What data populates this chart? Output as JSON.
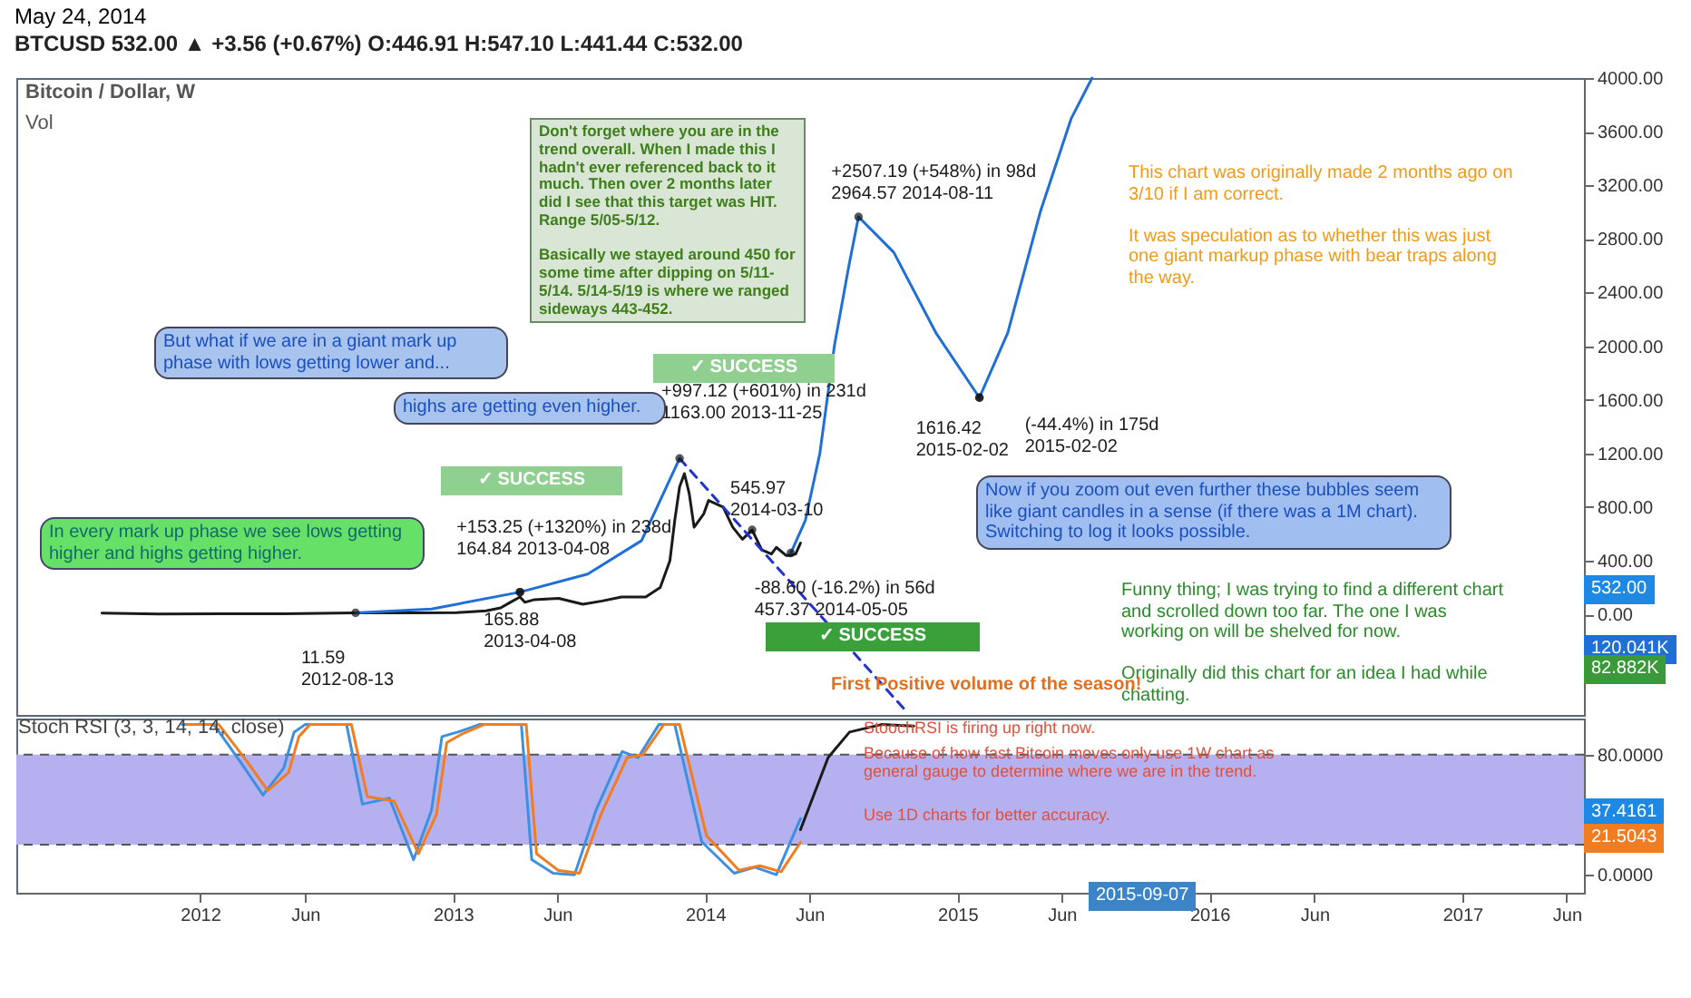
{
  "chart_data": [
    {
      "type": "line",
      "title": "Bitcoin / Dollar, W",
      "subtitle": "May 24, 2014",
      "xlim": [
        "2011-04-10",
        "2017-06-26"
      ],
      "ylim": [
        -750,
        4000
      ],
      "yticks": [
        {
          "value": 0,
          "label": "0.00"
        },
        {
          "value": 400,
          "label": "400.00"
        },
        {
          "value": 800,
          "label": "800.00"
        },
        {
          "value": 1200,
          "label": "1200.00"
        },
        {
          "value": 1600,
          "label": "1600.00"
        },
        {
          "value": 2000,
          "label": "2000.00"
        },
        {
          "value": 2400,
          "label": "2400.00"
        },
        {
          "value": 2800,
          "label": "2800.00"
        },
        {
          "value": 3200,
          "label": "3200.00"
        },
        {
          "value": 3600,
          "label": "3600.00"
        },
        {
          "value": 4000,
          "label": "4000.00"
        }
      ],
      "tick_labels": "y",
      "grid": false,
      "series": [
        {
          "color": "#1a1a1a",
          "x": [
            "2011-08-12",
            "2011-11-01",
            "2012-02-01",
            "2012-05-01",
            "2012-08-13",
            "2012-11-01",
            "2013-01-07",
            "2013-02-18",
            "2013-03-11",
            "2013-03-25",
            "2013-04-08",
            "2013-04-15",
            "2013-04-29",
            "2013-06-03",
            "2013-07-08",
            "2013-08-05",
            "2013-09-02",
            "2013-10-07",
            "2013-10-28",
            "2013-11-11",
            "2013-11-18",
            "2013-11-25",
            "2013-12-02",
            "2013-12-09",
            "2013-12-16",
            "2013-12-30",
            "2014-01-06",
            "2014-01-27",
            "2014-02-10",
            "2014-02-24",
            "2014-03-10",
            "2014-03-24",
            "2014-04-07",
            "2014-04-14",
            "2014-04-28",
            "2014-05-05",
            "2014-05-12",
            "2014-05-19"
          ],
          "values": [
            10,
            3,
            5,
            5,
            11.59,
            11,
            13,
            27,
            48,
            90,
            130,
            90,
            110,
            120,
            75,
            100,
            130,
            130,
            200,
            400,
            700,
            950,
            1050,
            900,
            650,
            750,
            850,
            800,
            650,
            560,
            630,
            480,
            450,
            500,
            440,
            440,
            450,
            532
          ]
        },
        {
          "color": "#1f6fd6",
          "x": [
            "2012-08-13",
            "2012-12-01",
            "2013-04-08",
            "2013-07-15",
            "2013-10-01",
            "2013-11-25"
          ],
          "values": [
            11.59,
            40,
            165.88,
            300,
            550,
            1163
          ]
        },
        {
          "color": "#1f6fd6",
          "x": [
            "2014-05-05",
            "2014-05-26",
            "2014-06-16",
            "2014-07-07",
            "2014-07-28",
            "2014-08-11"
          ],
          "values": [
            457.37,
            700,
            1200,
            2000,
            2600,
            2964.57
          ]
        },
        {
          "color": "#1f6fd6",
          "x": [
            "2014-08-11",
            "2014-10-01",
            "2014-12-01",
            "2015-02-02"
          ],
          "values": [
            2964.57,
            2700,
            2100,
            1616.42
          ]
        },
        {
          "color": "#1f6fd6",
          "x": [
            "2015-02-02",
            "2015-03-15",
            "2015-05-01",
            "2015-06-15",
            "2015-07-15"
          ],
          "values": [
            1616.42,
            2100,
            3000,
            3700,
            4000
          ]
        },
        {
          "color": "#2233cc",
          "line_style": "dashed",
          "x": [
            "2013-11-25",
            "2014-10-15"
          ],
          "values": [
            1163,
            -700
          ]
        }
      ],
      "annotations": [
        "BTCUSD 532.00 ▲ +3.56 (+0.67%) O:446.91 H:547.10 L:441.44 C:532.00",
        "Vol",
        "Don't forget where you are in the trend overall. When I made this I hadn't ever referenced back to it much. Then over 2 months later did I see that this target was HIT. Range 5/05-5/12.\n\nBasically we stayed around 450 for some time after dipping on 5/11-5/14. 5/14-5/19 is where we ranged sideways 443-452.",
        "But what if we are in a giant mark up phase with lows getting lower and...",
        "highs are getting even higher.",
        "In every mark up phase we see lows getting higher and highs getting higher.",
        "Now if you zoom out even further these bubbles seem like giant candles in a sense (if there was a 1M chart). Switching to log it looks possible.",
        "This chart was originally made 2 months ago on 3/10 if I am correct.\n\nIt was speculation as to whether this was just one giant markup phase with bear traps along the way.",
        "Funny thing; I was trying to find a different chart and scrolled down too far. The one I was working on will be shelved for now.\n\nOriginally did this chart for an idea I had while chatting.",
        "First Positive volume of the season!",
        "✓ SUCCESS",
        "✓ SUCCESS",
        "✓ SUCCESS",
        "532.00",
        "120.041K",
        "82.882K",
        {
          "text": "+2507.19 (+548%) in 98d\n2964.57  2014-08-11",
          "x": "2014-08-11",
          "y": 2964.57
        },
        {
          "text": "+997.12 (+601%) in 231d\n1163.00  2013-11-25",
          "x": "2013-11-25",
          "y": 1163
        },
        {
          "text": "+153.25 (+1320%) in 238d\n164.84  2013-04-08",
          "x": "2013-04-08",
          "y": 165.88
        },
        {
          "text": "-88.60 (-16.2%) in 56d\n457.37  2014-05-05",
          "x": "2014-05-05",
          "y": 457.37
        },
        {
          "text": "(-44.4%) in 175d\n2015-02-02",
          "x": "2015-02-02",
          "y": 1616.42
        },
        {
          "text": "11.59\n2012-08-13",
          "x": "2012-08-13",
          "y": 11.59
        },
        {
          "text": "165.88\n2013-04-08",
          "x": "2013-04-08",
          "y": 165.88
        },
        {
          "text": "545.97\n2014-03-10",
          "x": "2014-03-10",
          "y": 630
        },
        {
          "text": "1616.42\n2015-02-02",
          "x": "2015-02-02",
          "y": 1616.42
        }
      ]
    },
    {
      "type": "line",
      "title": "Stoch RSI (3, 3, 14, 14, close)",
      "xlim": [
        "2011-04-10",
        "2017-06-26"
      ],
      "ylim": [
        -12,
        104
      ],
      "yticks": [
        {
          "value": 0,
          "label": "0.0000"
        },
        {
          "value": 80,
          "label": "80.0000"
        }
      ],
      "xticks": [
        {
          "value": "2012-01-01",
          "label": "2012"
        },
        {
          "value": "2012-06-01",
          "label": "Jun"
        },
        {
          "value": "2013-01-01",
          "label": "2013"
        },
        {
          "value": "2013-06-01",
          "label": "Jun"
        },
        {
          "value": "2014-01-01",
          "label": "2014"
        },
        {
          "value": "2014-06-01",
          "label": "Jun"
        },
        {
          "value": "2015-01-01",
          "label": "2015"
        },
        {
          "value": "2015-06-01",
          "label": "Jun"
        },
        {
          "value": "2016-01-01",
          "label": "2016"
        },
        {
          "value": "2016-06-01",
          "label": "Jun"
        },
        {
          "value": "2017-01-01",
          "label": "2017"
        },
        {
          "value": "2017-06-01",
          "label": "Jun"
        }
      ],
      "grid": false,
      "bands": [
        {
          "axis": "y",
          "from": 20,
          "to": 80,
          "color": "#b5b1f0"
        }
      ],
      "ref_lines": [
        {
          "axis": "y",
          "value": 80,
          "color": "#555555",
          "line_style": "dashed"
        },
        {
          "axis": "y",
          "value": 20,
          "color": "#555555",
          "line_style": "dashed"
        }
      ],
      "series": [
        {
          "color": "#3d8fe0",
          "x": [
            "2011-12-06",
            "2012-01-21",
            "2012-03-01",
            "2012-04-01",
            "2012-05-01",
            "2012-05-16",
            "2012-06-01",
            "2012-07-31",
            "2012-08-23",
            "2012-10-01",
            "2012-11-05",
            "2012-12-01",
            "2012-12-16",
            "2013-01-08",
            "2013-02-08",
            "2013-04-10",
            "2013-04-25",
            "2013-05-26",
            "2013-06-26",
            "2013-07-27",
            "2013-09-03",
            "2013-09-26",
            "2013-10-26",
            "2013-11-18",
            "2013-12-27",
            "2014-02-12",
            "2014-03-14",
            "2014-04-14",
            "2014-05-19"
          ],
          "values": [
            100,
            100,
            74,
            53,
            71,
            95,
            100,
            100,
            47,
            51,
            10,
            43,
            92,
            95,
            100,
            100,
            10,
            1,
            0,
            43,
            82,
            78,
            100,
            100,
            22,
            1,
            5,
            0,
            37.4161
          ]
        },
        {
          "color": "#f07d22",
          "x": [
            "2011-12-13",
            "2012-01-28",
            "2012-03-08",
            "2012-04-08",
            "2012-05-08",
            "2012-05-23",
            "2012-06-08",
            "2012-08-07",
            "2012-08-30",
            "2012-10-08",
            "2012-11-12",
            "2012-12-08",
            "2012-12-23",
            "2013-01-15",
            "2013-02-15",
            "2013-04-17",
            "2013-05-02",
            "2013-06-02",
            "2013-07-03",
            "2013-08-03",
            "2013-09-10",
            "2013-10-03",
            "2013-11-02",
            "2013-11-25",
            "2014-01-03",
            "2014-02-19",
            "2014-03-21",
            "2014-04-21",
            "2014-05-19"
          ],
          "values": [
            100,
            100,
            76,
            56,
            68,
            92,
            100,
            100,
            52,
            49,
            14,
            40,
            88,
            94,
            100,
            100,
            14,
            3,
            1,
            40,
            78,
            80,
            100,
            100,
            26,
            3,
            6,
            2,
            21.5043
          ]
        },
        {
          "color": "#1a1a1a",
          "x": [
            "2014-05-19",
            "2014-06-28",
            "2014-07-29",
            "2014-09-13",
            "2014-10-30"
          ],
          "values": [
            30,
            78,
            95,
            100,
            99
          ]
        }
      ],
      "annotations": [
        "StoochRSI is firing up right now.",
        "Because of how fast Bitcoin moves only use 1W chart as general gauge to determine where we are in the trend.",
        "Use 1D charts for better accuracy.",
        "37.4161",
        "21.5043",
        "2015-09-07"
      ]
    }
  ]
}
